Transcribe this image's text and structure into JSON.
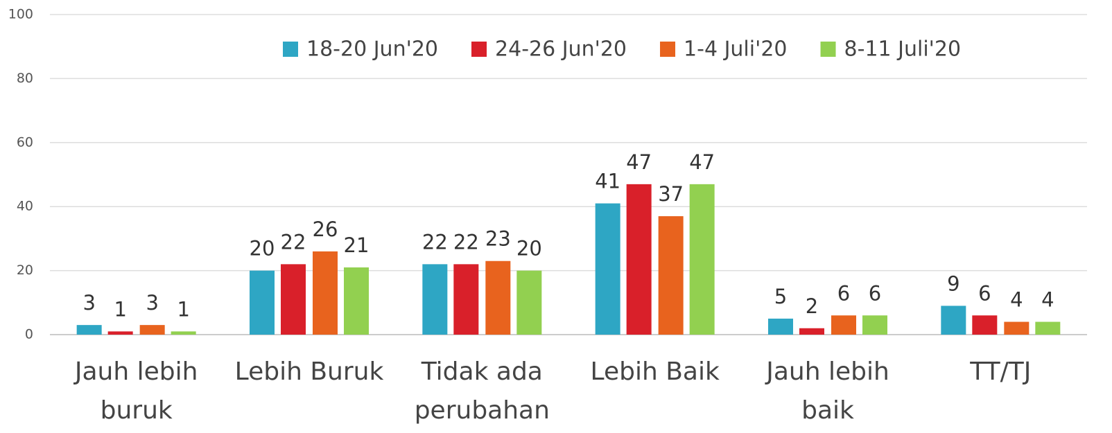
{
  "chart_data": {
    "type": "bar",
    "categories": [
      "Jauh lebih buruk",
      "Lebih Buruk",
      "Tidak ada perubahan",
      "Lebih Baik",
      "Jauh lebih baik",
      "TT/TJ"
    ],
    "series": [
      {
        "name": "18-20 Jun'20",
        "color": "#2ea6c4",
        "values": [
          3,
          20,
          22,
          41,
          5,
          9
        ]
      },
      {
        "name": "24-26 Jun'20",
        "color": "#d9202a",
        "values": [
          1,
          22,
          22,
          47,
          2,
          6
        ]
      },
      {
        "name": "1-4 Juli'20",
        "color": "#e8631e",
        "values": [
          3,
          26,
          23,
          37,
          6,
          4
        ]
      },
      {
        "name": "8-11 Juli'20",
        "color": "#92d050",
        "values": [
          1,
          21,
          20,
          47,
          6,
          4
        ]
      }
    ],
    "ylim": [
      0,
      100
    ],
    "yticks": [
      0,
      20,
      40,
      60,
      80,
      100
    ],
    "grid": true,
    "legend": "top"
  }
}
